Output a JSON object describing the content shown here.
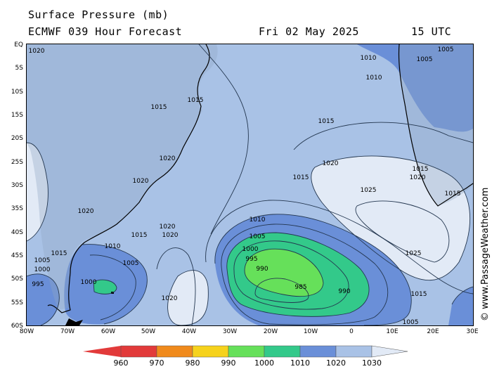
{
  "header": {
    "title": "Surface Pressure (mb)",
    "model": "ECMWF 039 Hour Forecast",
    "date": "Fri 02 May 2025",
    "time": "15 UTC"
  },
  "credit": "© www.PassageWeather.com",
  "lat_ticks": [
    "EQ",
    "5S",
    "10S",
    "15S",
    "20S",
    "25S",
    "30S",
    "35S",
    "40S",
    "45S",
    "50S",
    "55S",
    "60S"
  ],
  "lon_ticks": [
    "80W",
    "70W",
    "60W",
    "50W",
    "40W",
    "30W",
    "20W",
    "10W",
    "0",
    "10E",
    "20E",
    "30E"
  ],
  "legend": {
    "labels": [
      "960",
      "970",
      "980",
      "990",
      "1000",
      "1010",
      "1020",
      "1030"
    ],
    "colors": [
      "#e23a3a",
      "#f08a1c",
      "#f6d21c",
      "#66e05a",
      "#33c98a",
      "#6a8fd8",
      "#a9c2e6",
      "#e2eaf6"
    ]
  },
  "isobar_labels": {
    "low_center": "985",
    "low_990": "990",
    "low_995": "995",
    "low_1000": "1000",
    "low_1005": "1005",
    "low_1010": "1010",
    "mid_1015_a": "1015",
    "mid_1015_b": "1015",
    "high_1020": "1020",
    "high_1025": "1025",
    "high_1025_b": "1025",
    "east_1015": "1015",
    "south_1015": "1015",
    "south_1005": "1005",
    "sa_1020_a": "1020",
    "sa_1020_b": "1020",
    "sa_1015": "1015",
    "sa_1015_b": "1015",
    "sa_1010": "1010",
    "sa_1005": "1005",
    "sa_1000": "1000",
    "sa_995": "995",
    "cape_1000": "1000",
    "sth_1020": "1020",
    "west_1010": "1010",
    "afr_1005": "1005",
    "afr_1010": "1010",
    "afr_1020": "1020",
    "afr_1015": "1015",
    "ne_1010": "1010",
    "ne_1005": "1005",
    "atl_1020": "1020",
    "atl_1020_b": "1020",
    "sw_1020": "1020",
    "south_1005_b": "1005"
  }
}
